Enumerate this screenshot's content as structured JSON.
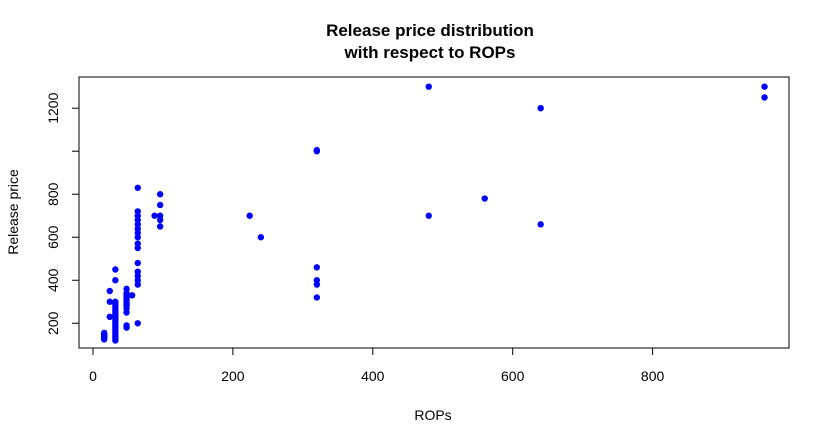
{
  "chart_data": {
    "type": "scatter",
    "title_line1": "Release price distribution",
    "title_line2": "with respect to ROPs",
    "xlabel": "ROPs",
    "ylabel": "Release price",
    "xlim": [
      -20,
      995
    ],
    "ylim": [
      85,
      1345
    ],
    "x_ticks": [
      0,
      200,
      400,
      600,
      800
    ],
    "x_tick_labels": [
      "0",
      "200",
      "400",
      "600",
      "800"
    ],
    "y_ticks": [
      200,
      400,
      600,
      800,
      1000,
      1200
    ],
    "y_tick_labels": [
      "200",
      "400",
      "600",
      "800",
      "",
      "1200"
    ],
    "grid": false,
    "point_color": "#0000ff",
    "points": [
      [
        16,
        125
      ],
      [
        16,
        130
      ],
      [
        16,
        135
      ],
      [
        16,
        140
      ],
      [
        16,
        145
      ],
      [
        16,
        150
      ],
      [
        16,
        155
      ],
      [
        24,
        230
      ],
      [
        24,
        300
      ],
      [
        24,
        350
      ],
      [
        32,
        120
      ],
      [
        32,
        130
      ],
      [
        32,
        140
      ],
      [
        32,
        150
      ],
      [
        32,
        160
      ],
      [
        32,
        170
      ],
      [
        32,
        180
      ],
      [
        32,
        190
      ],
      [
        32,
        200
      ],
      [
        32,
        210
      ],
      [
        32,
        220
      ],
      [
        32,
        230
      ],
      [
        32,
        240
      ],
      [
        32,
        250
      ],
      [
        32,
        260
      ],
      [
        32,
        270
      ],
      [
        32,
        280
      ],
      [
        32,
        290
      ],
      [
        32,
        300
      ],
      [
        32,
        400
      ],
      [
        32,
        450
      ],
      [
        48,
        180
      ],
      [
        48,
        190
      ],
      [
        48,
        250
      ],
      [
        48,
        270
      ],
      [
        48,
        280
      ],
      [
        48,
        290
      ],
      [
        48,
        300
      ],
      [
        48,
        310
      ],
      [
        48,
        320
      ],
      [
        48,
        330
      ],
      [
        48,
        340
      ],
      [
        48,
        360
      ],
      [
        56,
        330
      ],
      [
        64,
        200
      ],
      [
        64,
        380
      ],
      [
        64,
        400
      ],
      [
        64,
        420
      ],
      [
        64,
        440
      ],
      [
        64,
        480
      ],
      [
        64,
        550
      ],
      [
        64,
        570
      ],
      [
        64,
        600
      ],
      [
        64,
        620
      ],
      [
        64,
        640
      ],
      [
        64,
        660
      ],
      [
        64,
        680
      ],
      [
        64,
        700
      ],
      [
        64,
        720
      ],
      [
        64,
        830
      ],
      [
        88,
        700
      ],
      [
        96,
        650
      ],
      [
        96,
        680
      ],
      [
        96,
        700
      ],
      [
        96,
        750
      ],
      [
        96,
        800
      ],
      [
        224,
        700
      ],
      [
        240,
        600
      ],
      [
        320,
        320
      ],
      [
        320,
        380
      ],
      [
        320,
        400
      ],
      [
        320,
        460
      ],
      [
        320,
        1000
      ],
      [
        320,
        1005
      ],
      [
        480,
        700
      ],
      [
        480,
        1300
      ],
      [
        560,
        780
      ],
      [
        640,
        660
      ],
      [
        640,
        1200
      ],
      [
        960,
        1250
      ],
      [
        960,
        1300
      ]
    ]
  }
}
